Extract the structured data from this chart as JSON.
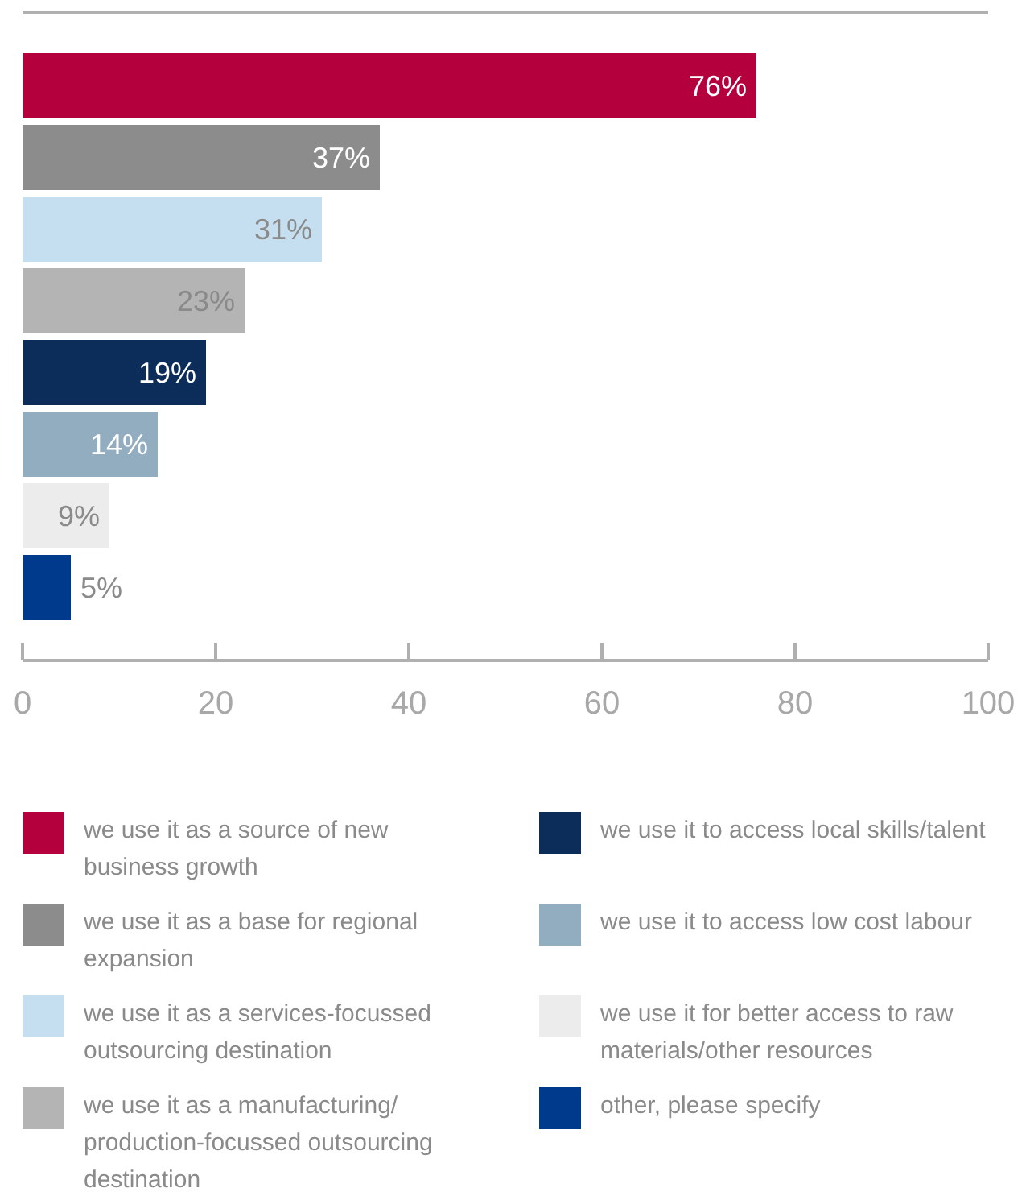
{
  "chart_data": {
    "type": "bar",
    "orientation": "horizontal",
    "stacked": true,
    "categories": [
      null,
      null,
      null,
      null,
      null,
      null,
      null,
      null
    ],
    "series": [
      {
        "name": "we use it as a source of new business growth",
        "color": "#b5003e",
        "values": [
          76,
          null,
          null,
          null,
          null,
          null,
          null,
          null
        ],
        "value_labels": [
          "76%",
          null,
          null,
          null,
          null,
          null,
          null,
          null
        ]
      },
      {
        "name": "we use it as a base for regional expansion",
        "color": "#8c8c8c",
        "values": [
          null,
          37,
          null,
          null,
          null,
          null,
          null,
          null
        ],
        "value_labels": [
          null,
          "37%",
          null,
          null,
          null,
          null,
          null,
          null
        ]
      },
      {
        "name": "we use it as a services-focussed outsourcing destination",
        "color": "#c5dff0",
        "values": [
          null,
          null,
          31,
          null,
          null,
          null,
          null,
          null
        ],
        "value_labels": [
          null,
          null,
          "31%",
          null,
          null,
          null,
          null,
          null
        ]
      },
      {
        "name": "we use it as a manufacturing/production-focussed outsourcing destination",
        "color": "#b4b4b4",
        "values": [
          null,
          null,
          null,
          23,
          null,
          null,
          null,
          null
        ],
        "value_labels": [
          null,
          null,
          null,
          "23%",
          null,
          null,
          null,
          null
        ]
      },
      {
        "name": "we use it to access local skills/talent",
        "color": "#0c2c5a",
        "values": [
          null,
          null,
          null,
          null,
          19,
          null,
          null,
          null
        ],
        "value_labels": [
          null,
          null,
          null,
          null,
          "19%",
          null,
          null,
          null
        ]
      },
      {
        "name": "we use it to access low cost labour",
        "color": "#93adc0",
        "values": [
          null,
          null,
          null,
          null,
          null,
          14,
          null,
          null
        ],
        "value_labels": [
          null,
          null,
          null,
          null,
          null,
          "14%",
          null,
          null
        ]
      },
      {
        "name": "we use it for better access to raw materials/other resources",
        "color": "#ececec",
        "values": [
          null,
          null,
          null,
          null,
          null,
          null,
          9,
          null
        ],
        "value_labels": [
          null,
          null,
          null,
          null,
          null,
          null,
          "9%",
          null
        ]
      },
      {
        "name": "other, please specify",
        "color": "#003a8c",
        "values": [
          null,
          null,
          null,
          null,
          null,
          null,
          null,
          5
        ],
        "value_labels": [
          null,
          null,
          null,
          null,
          null,
          null,
          null,
          "5%"
        ]
      }
    ],
    "xlim": [
      0,
      100
    ],
    "xticks": [
      0,
      20,
      40,
      60,
      80,
      100
    ],
    "tick_labels": "x",
    "legend": "bottom",
    "grid": false
  }
}
